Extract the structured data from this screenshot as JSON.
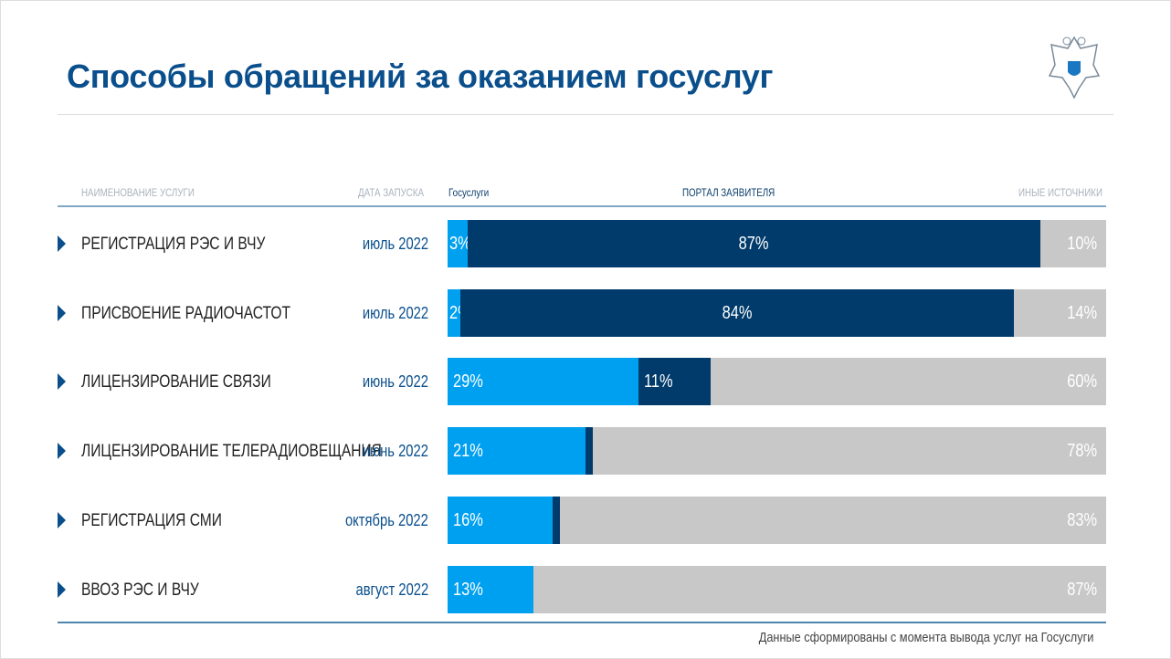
{
  "title": "Способы обращений за оказанием госуслуг",
  "footer_note": "Данные сформированы с момента вывода услуг на Госуслуги",
  "colors": {
    "gosuslugi": "#00a0f0",
    "portal": "#003b6b",
    "other": "#c8c8c8",
    "title": "#0a4f8c"
  },
  "chart_data": {
    "type": "bar",
    "orientation": "horizontal",
    "stacked": true,
    "columns": {
      "name": "НАИМЕНОВАНИЕ УСЛУГИ",
      "date": "ДАТА ЗАПУСКА"
    },
    "categories": [
      "РЕГИСТРАЦИЯ РЭС И ВЧУ",
      "ПРИСВОЕНИЕ РАДИОЧАСТОТ",
      "ЛИЦЕНЗИРОВАНИЕ СВЯЗИ",
      "ЛИЦЕНЗИРОВАНИЕ ТЕЛЕРАДИОВЕЩАНИЯ",
      "РЕГИСТРАЦИЯ СМИ",
      "ВВОЗ РЭС И ВЧУ"
    ],
    "launch_dates": [
      "июль 2022",
      "июль 2022",
      "июнь 2022",
      "июнь 2022",
      "октябрь 2022",
      "август 2022"
    ],
    "series": [
      {
        "name": "Госуслуги",
        "values": [
          3,
          2,
          29,
          21,
          16,
          13
        ],
        "labels": [
          "3%",
          "2%",
          "29%",
          "21%",
          "16%",
          "13%"
        ]
      },
      {
        "name": "ПОРТАЛ ЗАЯВИТЕЛЯ",
        "values": [
          87,
          84,
          11,
          1,
          1,
          0
        ],
        "labels": [
          "87%",
          "84%",
          "11%",
          "",
          "",
          ""
        ]
      },
      {
        "name": "ИНЫЕ ИСТОЧНИКИ",
        "values": [
          10,
          14,
          60,
          78,
          83,
          87
        ],
        "labels": [
          "10%",
          "14%",
          "60%",
          "78%",
          "83%",
          "87%"
        ]
      }
    ],
    "xlim": [
      0,
      100
    ]
  }
}
